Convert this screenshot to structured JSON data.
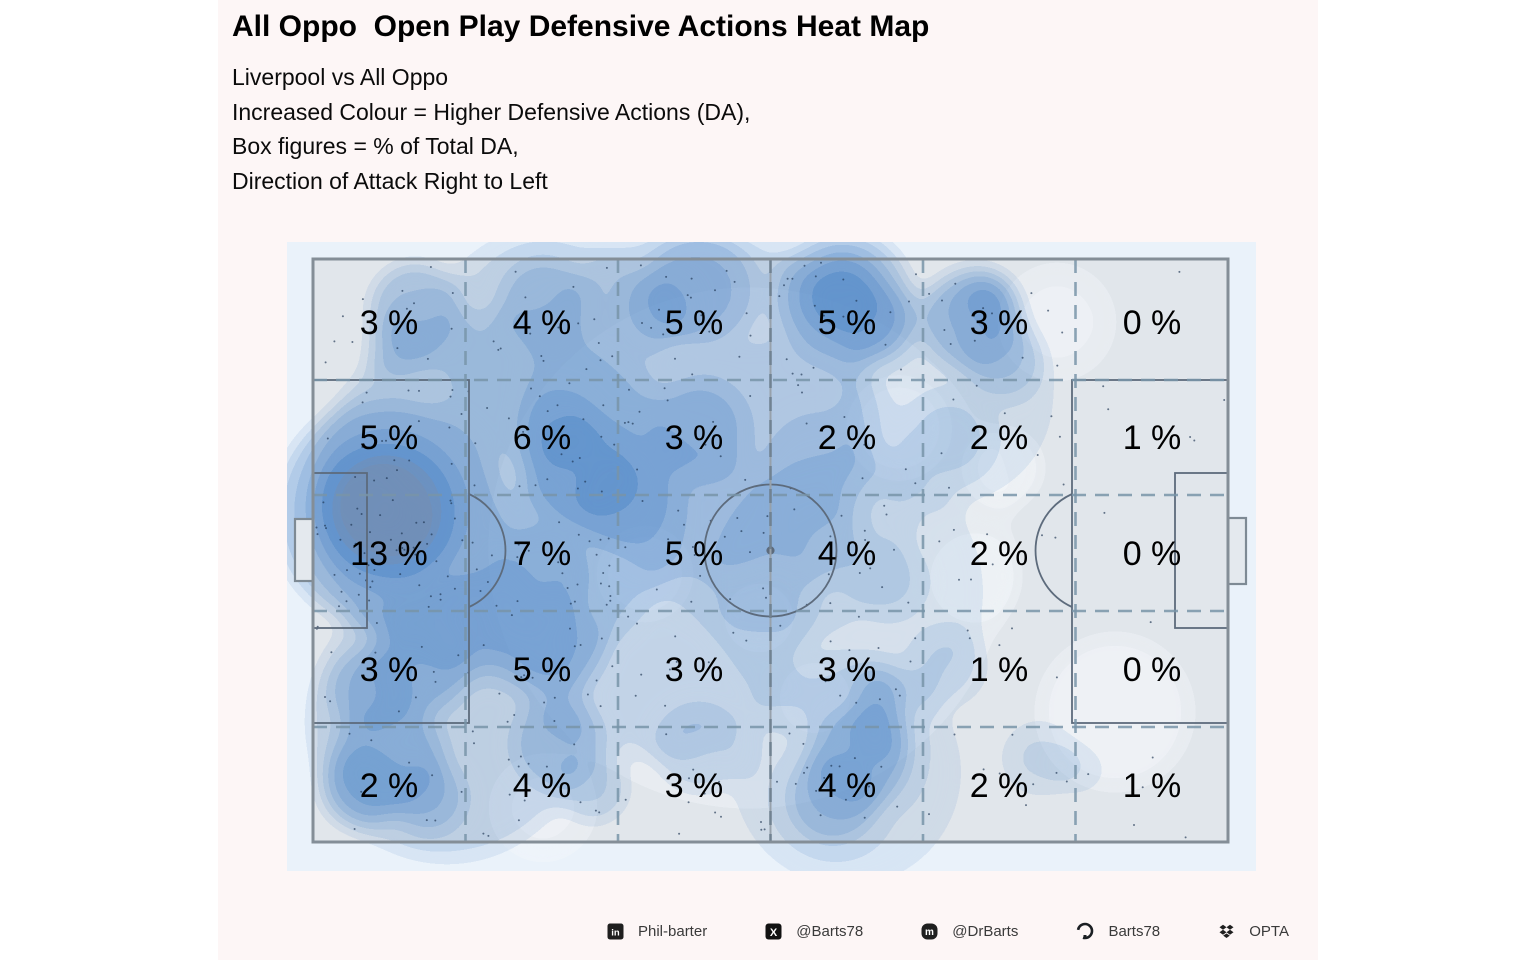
{
  "header": {
    "title": "All Oppo  Open Play Defensive Actions Heat Map",
    "subtitle_lines": [
      "Liverpool vs All Oppo",
      "Increased Colour = Higher Defensive Actions (DA),",
      "Box figures = % of Total DA,",
      "Direction of Attack Right to Left"
    ]
  },
  "pitch_grid": {
    "rows": 5,
    "cols": 6,
    "labels": [
      [
        "3 %",
        "4 %",
        "5 %",
        "5 %",
        "3 %",
        "0 %"
      ],
      [
        "5 %",
        "6 %",
        "3 %",
        "2 %",
        "2 %",
        "1 %"
      ],
      [
        "13 %",
        "7 %",
        "5 %",
        "4 %",
        "2 %",
        "0 %"
      ],
      [
        "3 %",
        "5 %",
        "3 %",
        "3 %",
        "1 %",
        "0 %"
      ],
      [
        "2 %",
        "4 %",
        "3 %",
        "4 %",
        "2 %",
        "1 %"
      ]
    ],
    "values": [
      [
        3,
        4,
        5,
        5,
        3,
        0
      ],
      [
        5,
        6,
        3,
        2,
        2,
        1
      ],
      [
        13,
        7,
        5,
        4,
        2,
        0
      ],
      [
        3,
        5,
        3,
        3,
        1,
        0
      ],
      [
        2,
        4,
        3,
        4,
        2,
        1
      ]
    ]
  },
  "footer": {
    "items": [
      {
        "icon": "linkedin-icon",
        "label": "Phil-barter"
      },
      {
        "icon": "x-icon",
        "label": "@Barts78"
      },
      {
        "icon": "mastodon-icon",
        "label": "@DrBarts"
      },
      {
        "icon": "github-icon",
        "label": "Barts78"
      },
      {
        "icon": "dropbox-icon",
        "label": "OPTA"
      }
    ]
  },
  "colors": {
    "figure_bg": "#fdf6f6",
    "panel_bg": "#eaf2fa",
    "pitch_fill": "#e1e6eb",
    "heat_blue": "#4d86c8",
    "pitch_line": "#5d6b7c",
    "boundary": "#848e97",
    "grid_line": "#7894a8"
  },
  "chart_data": {
    "type": "heatmap",
    "title": "All Oppo  Open Play Defensive Actions Heat Map",
    "subtitle": "Liverpool vs All Oppo; Increased Colour = Higher Defensive Actions (DA); Box figures = % of Total DA; Direction of Attack Right to Left",
    "x_axis": "pitch length, 6 zones, attack direction right to left (defending goal on left)",
    "y_axis": "pitch width, 5 zones, top to bottom",
    "unit": "% of Total Defensive Actions",
    "values": [
      [
        3,
        4,
        5,
        5,
        3,
        0
      ],
      [
        5,
        6,
        3,
        2,
        2,
        1
      ],
      [
        13,
        7,
        5,
        4,
        2,
        0
      ],
      [
        3,
        5,
        3,
        3,
        1,
        0
      ],
      [
        2,
        4,
        3,
        4,
        2,
        1
      ]
    ],
    "max_value": 13,
    "legend_position": "none",
    "grid": "dashed 6x5 zone grid over football pitch"
  }
}
